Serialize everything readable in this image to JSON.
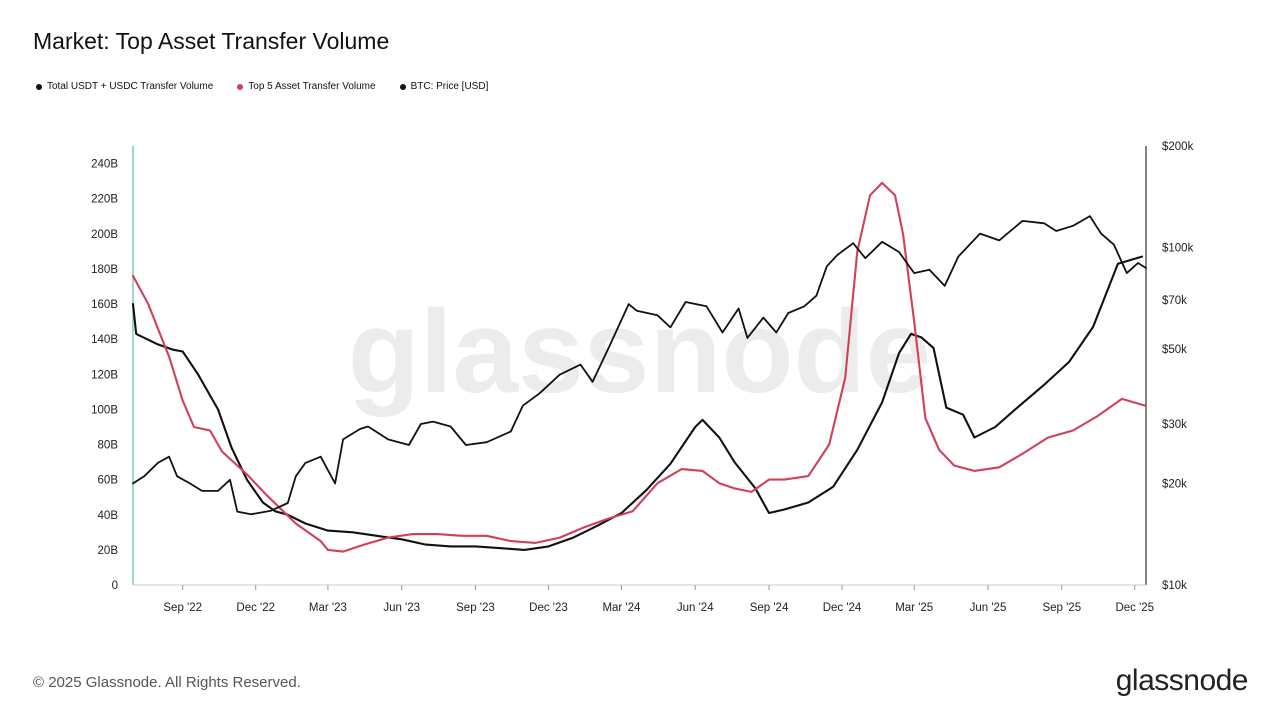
{
  "title": "Market: Top Asset Transfer Volume",
  "legend": [
    {
      "label": "Total USDT + USDC Transfer Volume",
      "color": "#111111"
    },
    {
      "label": "Top 5 Asset Transfer Volume",
      "color": "#d0405a"
    },
    {
      "label": "BTC: Price [USD]",
      "color": "#111111"
    }
  ],
  "footer": "© 2025 Glassnode. All Rights Reserved.",
  "brand": "glassnode",
  "watermark": "glassnode",
  "chart_data": {
    "type": "line",
    "title": "Market: Top Asset Transfer Volume",
    "x_ticks": [
      "Sep '22",
      "Dec '22",
      "Mar '23",
      "Jun '23",
      "Sep '23",
      "Dec '23",
      "Mar '24",
      "Jun '24",
      "Sep '24",
      "Dec '24",
      "Mar '25",
      "Jun '25",
      "Sep '25",
      "Dec '25"
    ],
    "x_range": [
      "2022-07-01",
      "2025-12-15"
    ],
    "y_left": {
      "ticks": [
        "0",
        "20B",
        "40B",
        "60B",
        "80B",
        "100B",
        "120B",
        "140B",
        "160B",
        "180B",
        "200B",
        "220B",
        "240B"
      ],
      "range": [
        0,
        250
      ]
    },
    "y_right": {
      "scale": "log",
      "ticks": [
        {
          "label": "$10k",
          "value": 10
        },
        {
          "label": "$20k",
          "value": 20
        },
        {
          "label": "$30k",
          "value": 30
        },
        {
          "label": "$50k",
          "value": 50
        },
        {
          "label": "$70k",
          "value": 70
        },
        {
          "label": "$100k",
          "value": 100
        },
        {
          "label": "$200k",
          "value": 200
        }
      ],
      "range": [
        10,
        200
      ]
    },
    "series": [
      {
        "name": "Total USDT + USDC Transfer Volume",
        "color": "#111111",
        "axis": "left",
        "points": [
          [
            "2022-07-01",
            160
          ],
          [
            "2022-07-05",
            143
          ],
          [
            "2022-08-01",
            137
          ],
          [
            "2022-08-20",
            134
          ],
          [
            "2022-09-01",
            133
          ],
          [
            "2022-09-20",
            120
          ],
          [
            "2022-10-15",
            100
          ],
          [
            "2022-11-01",
            78
          ],
          [
            "2022-11-20",
            60
          ],
          [
            "2022-12-10",
            47
          ],
          [
            "2022-12-25",
            42
          ],
          [
            "2023-01-10",
            40
          ],
          [
            "2023-02-01",
            35
          ],
          [
            "2023-03-01",
            31
          ],
          [
            "2023-04-01",
            30
          ],
          [
            "2023-05-01",
            28
          ],
          [
            "2023-06-01",
            26
          ],
          [
            "2023-07-01",
            23
          ],
          [
            "2023-08-01",
            22
          ],
          [
            "2023-09-01",
            22
          ],
          [
            "2023-10-01",
            21
          ],
          [
            "2023-11-01",
            20
          ],
          [
            "2023-12-01",
            22
          ],
          [
            "2024-01-01",
            27
          ],
          [
            "2024-02-01",
            34
          ],
          [
            "2024-03-01",
            41
          ],
          [
            "2024-04-01",
            54
          ],
          [
            "2024-05-01",
            69
          ],
          [
            "2024-06-01",
            90
          ],
          [
            "2024-06-10",
            94
          ],
          [
            "2024-07-01",
            84
          ],
          [
            "2024-07-20",
            70
          ],
          [
            "2024-08-15",
            55
          ],
          [
            "2024-09-01",
            41
          ],
          [
            "2024-09-20",
            43
          ],
          [
            "2024-10-20",
            47
          ],
          [
            "2024-11-20",
            56
          ],
          [
            "2024-12-20",
            77
          ],
          [
            "2025-01-20",
            104
          ],
          [
            "2025-02-10",
            132
          ],
          [
            "2025-02-25",
            143
          ],
          [
            "2025-03-10",
            141
          ],
          [
            "2025-03-25",
            135
          ],
          [
            "2025-04-10",
            101
          ],
          [
            "2025-05-01",
            97
          ],
          [
            "2025-05-15",
            84
          ],
          [
            "2025-06-10",
            90
          ],
          [
            "2025-07-10",
            102
          ],
          [
            "2025-08-10",
            114
          ],
          [
            "2025-09-10",
            127
          ],
          [
            "2025-10-10",
            147
          ],
          [
            "2025-11-10",
            183
          ],
          [
            "2025-12-10",
            187
          ]
        ]
      },
      {
        "name": "Top 5 Asset Transfer Volume",
        "color": "#d0405a",
        "axis": "left",
        "points": [
          [
            "2022-07-01",
            176
          ],
          [
            "2022-07-20",
            160
          ],
          [
            "2022-08-15",
            130
          ],
          [
            "2022-09-01",
            105
          ],
          [
            "2022-09-15",
            90
          ],
          [
            "2022-10-05",
            88
          ],
          [
            "2022-10-20",
            76
          ],
          [
            "2022-11-20",
            63
          ],
          [
            "2022-12-15",
            51
          ],
          [
            "2023-01-20",
            35
          ],
          [
            "2023-02-20",
            25
          ],
          [
            "2023-03-01",
            20
          ],
          [
            "2023-03-20",
            19
          ],
          [
            "2023-04-15",
            23
          ],
          [
            "2023-05-15",
            27
          ],
          [
            "2023-06-15",
            29
          ],
          [
            "2023-07-15",
            29
          ],
          [
            "2023-08-15",
            28
          ],
          [
            "2023-09-15",
            28
          ],
          [
            "2023-10-15",
            25
          ],
          [
            "2023-11-15",
            24
          ],
          [
            "2023-12-15",
            27
          ],
          [
            "2024-01-15",
            33
          ],
          [
            "2024-02-15",
            38
          ],
          [
            "2024-03-15",
            42
          ],
          [
            "2024-04-15",
            58
          ],
          [
            "2024-05-15",
            66
          ],
          [
            "2024-06-10",
            65
          ],
          [
            "2024-07-01",
            58
          ],
          [
            "2024-07-20",
            55
          ],
          [
            "2024-08-10",
            53
          ],
          [
            "2024-09-01",
            60
          ],
          [
            "2024-09-20",
            60
          ],
          [
            "2024-10-20",
            62
          ],
          [
            "2024-11-15",
            80
          ],
          [
            "2024-12-05",
            118
          ],
          [
            "2024-12-20",
            190
          ],
          [
            "2025-01-05",
            222
          ],
          [
            "2025-01-20",
            229
          ],
          [
            "2025-02-05",
            222
          ],
          [
            "2025-02-15",
            200
          ],
          [
            "2025-03-01",
            150
          ],
          [
            "2025-03-15",
            95
          ],
          [
            "2025-04-01",
            77
          ],
          [
            "2025-04-20",
            68
          ],
          [
            "2025-05-15",
            65
          ],
          [
            "2025-06-15",
            67
          ],
          [
            "2025-07-15",
            75
          ],
          [
            "2025-08-15",
            84
          ],
          [
            "2025-09-15",
            88
          ],
          [
            "2025-10-15",
            96
          ],
          [
            "2025-11-15",
            106
          ],
          [
            "2025-12-15",
            102
          ]
        ]
      },
      {
        "name": "BTC: Price [USD]",
        "color": "#111111",
        "axis": "right",
        "scale": "log",
        "points": [
          [
            "2022-07-01",
            20
          ],
          [
            "2022-07-15",
            21
          ],
          [
            "2022-08-01",
            23
          ],
          [
            "2022-08-15",
            24
          ],
          [
            "2022-08-25",
            21
          ],
          [
            "2022-09-10",
            20
          ],
          [
            "2022-09-25",
            19
          ],
          [
            "2022-10-15",
            19
          ],
          [
            "2022-10-30",
            20.5
          ],
          [
            "2022-11-08",
            16.5
          ],
          [
            "2022-11-25",
            16.2
          ],
          [
            "2022-12-20",
            16.6
          ],
          [
            "2023-01-10",
            17.5
          ],
          [
            "2023-01-20",
            21
          ],
          [
            "2023-02-01",
            23
          ],
          [
            "2023-02-20",
            24
          ],
          [
            "2023-03-10",
            20
          ],
          [
            "2023-03-20",
            27
          ],
          [
            "2023-04-10",
            29
          ],
          [
            "2023-04-20",
            29.5
          ],
          [
            "2023-05-15",
            27
          ],
          [
            "2023-06-10",
            26
          ],
          [
            "2023-06-25",
            30
          ],
          [
            "2023-07-10",
            30.5
          ],
          [
            "2023-08-01",
            29.5
          ],
          [
            "2023-08-20",
            26
          ],
          [
            "2023-09-15",
            26.5
          ],
          [
            "2023-10-15",
            28.5
          ],
          [
            "2023-10-30",
            34
          ],
          [
            "2023-11-20",
            37
          ],
          [
            "2023-12-15",
            42
          ],
          [
            "2024-01-10",
            45
          ],
          [
            "2024-01-25",
            40
          ],
          [
            "2024-02-15",
            51
          ],
          [
            "2024-03-10",
            68
          ],
          [
            "2024-03-20",
            65
          ],
          [
            "2024-04-15",
            63
          ],
          [
            "2024-05-01",
            58
          ],
          [
            "2024-05-20",
            69
          ],
          [
            "2024-06-15",
            67
          ],
          [
            "2024-07-05",
            56
          ],
          [
            "2024-07-25",
            66
          ],
          [
            "2024-08-05",
            54
          ],
          [
            "2024-08-25",
            62
          ],
          [
            "2024-09-10",
            56
          ],
          [
            "2024-09-25",
            64
          ],
          [
            "2024-10-15",
            67
          ],
          [
            "2024-10-30",
            72
          ],
          [
            "2024-11-12",
            88
          ],
          [
            "2024-11-25",
            95
          ],
          [
            "2024-12-15",
            103
          ],
          [
            "2024-12-30",
            93
          ],
          [
            "2025-01-20",
            104
          ],
          [
            "2025-02-10",
            97
          ],
          [
            "2025-03-01",
            84
          ],
          [
            "2025-03-20",
            86
          ],
          [
            "2025-04-08",
            77
          ],
          [
            "2025-04-25",
            94
          ],
          [
            "2025-05-22",
            110
          ],
          [
            "2025-06-15",
            105
          ],
          [
            "2025-07-14",
            120
          ],
          [
            "2025-08-10",
            118
          ],
          [
            "2025-08-25",
            112
          ],
          [
            "2025-09-15",
            116
          ],
          [
            "2025-10-06",
            124
          ],
          [
            "2025-10-20",
            110
          ],
          [
            "2025-11-05",
            102
          ],
          [
            "2025-11-21",
            84
          ],
          [
            "2025-12-05",
            90
          ],
          [
            "2025-12-15",
            87
          ]
        ]
      }
    ]
  }
}
